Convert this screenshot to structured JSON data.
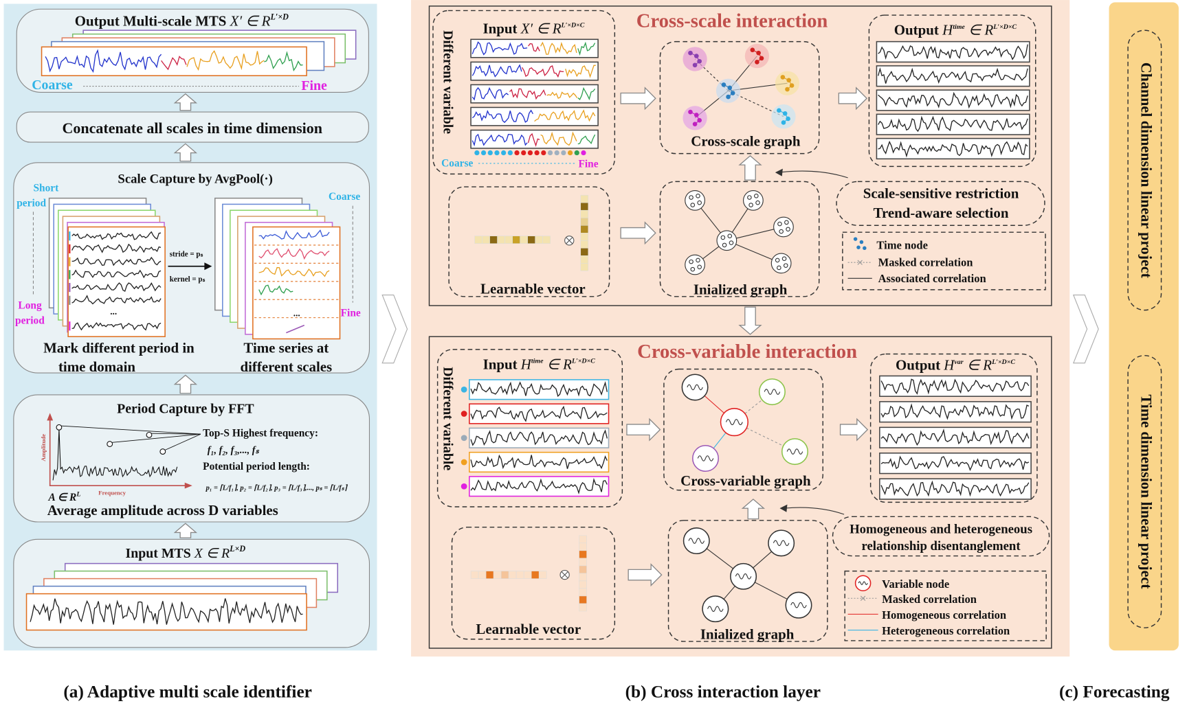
{
  "panel_a": {
    "output": {
      "title": "Output Multi-scale MTS",
      "math": "X′ ∈ R",
      "sup": "L′×D",
      "coarse": "Coarse",
      "fine": "Fine"
    },
    "concat": "Concatenate all scales in time dimension",
    "scale_capture": {
      "title": "Scale Capture by AvgPool(·)",
      "short_period": [
        "Short",
        "period"
      ],
      "long_period": [
        "Long",
        "period"
      ],
      "stride": "stride = pₛ",
      "kernel": "kernel = pₛ",
      "coarse": "Coarse",
      "fine": "Fine",
      "ellipsis_left": "...",
      "ellipsis_right": "...",
      "left_caption": [
        "Mark different period in",
        "time domain"
      ],
      "right_caption": [
        "Time series at",
        "different scales"
      ]
    },
    "period_capture": {
      "title": "Period Capture by FFT",
      "y_axis": "Amplitude",
      "x_axis": "Frequency",
      "math": "A ∈ R",
      "sup": "L",
      "top_s": "Top-S Highest frequency:",
      "freqs": "f₁, f₂, f₃,..., fₛ",
      "potential": "Potential period length:",
      "periods": "p₁ = ⌈L/f₁⌉, p₂ = ⌈L/f₂⌉, p₃ = ⌈L/f₃⌉,..., pₛ = ⌈L/fₛ⌉",
      "caption": "Average amplitude across D variables"
    },
    "input": {
      "title": "Input MTS",
      "math": "X ∈ R",
      "sup": "L×D"
    },
    "caption": "(a) Adaptive multi scale identifier"
  },
  "panel_b": {
    "cross_scale": {
      "title": "Cross-scale interaction",
      "input": {
        "title": "Input",
        "math": "X′ ∈ R",
        "sup": "L′×D×C"
      },
      "different_variable": "Different variable",
      "coarse": "Coarse",
      "fine": "Fine",
      "graph": "Cross-scale graph",
      "output": {
        "title": "Output",
        "base": "H",
        "base_sup": "time",
        "set": " ∈ R",
        "sup": "L′×D×C"
      },
      "learnable": "Learnable vector",
      "init_graph": "Inialized graph",
      "restriction": [
        "Scale-sensitive restriction",
        "Trend-aware selection"
      ],
      "legend": [
        "Time node",
        "Masked correlation",
        "Associated correlation"
      ]
    },
    "cross_variable": {
      "title": "Cross-variable interaction",
      "input": {
        "title": "Input",
        "base": "H",
        "base_sup": "time",
        "set": " ∈ R",
        "sup": "L′×D×C"
      },
      "different_variable": "Different variable",
      "graph": "Cross-variable graph",
      "output": {
        "title": "Output",
        "base": "H",
        "base_sup": "var",
        "set": " ∈ R",
        "sup": "L′×D×C"
      },
      "learnable": "Learnable vector",
      "init_graph": "Inialized  graph",
      "restriction": [
        "Homogeneous and heterogeneous",
        "relationship disentanglement"
      ],
      "legend": [
        "Variable node",
        "Masked correlation",
        "Homogeneous correlation",
        "Heterogeneous correlation"
      ]
    },
    "caption": "(b) Cross interaction layer"
  },
  "panel_c": {
    "projections": [
      "Channel dimension linear project",
      "Time dimension linear project"
    ],
    "caption": "(c) Forecasting"
  }
}
